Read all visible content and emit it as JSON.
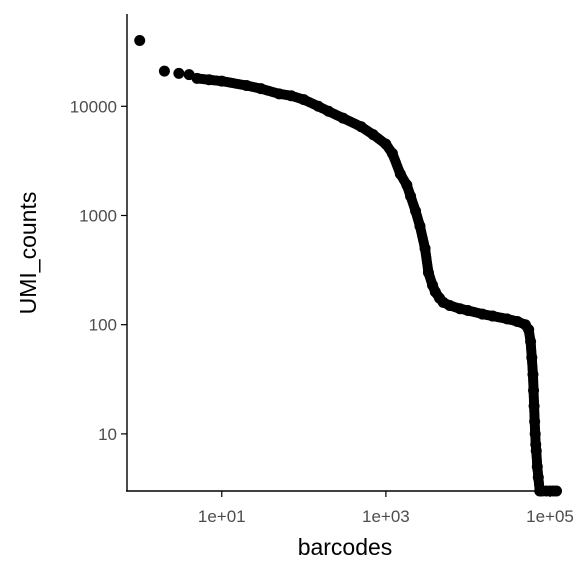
{
  "chart_data": {
    "type": "scatter",
    "title": "",
    "xlabel": "barcodes",
    "ylabel": "UMI_counts",
    "x_scale": "log10",
    "y_scale": "log10",
    "xlim": [
      0.7,
      140000
    ],
    "ylim": [
      3,
      70000
    ],
    "grid": false,
    "legend": "none",
    "x_ticks": [
      {
        "value": 10,
        "label": "1e+01"
      },
      {
        "value": 1000,
        "label": "1e+03"
      },
      {
        "value": 100000,
        "label": "1e+05"
      }
    ],
    "y_ticks": [
      {
        "value": 10,
        "label": "10"
      },
      {
        "value": 100,
        "label": "100"
      },
      {
        "value": 1000,
        "label": "1000"
      },
      {
        "value": 10000,
        "label": "10000"
      }
    ],
    "point_color": "#000000",
    "series": [
      {
        "x": [
          1,
          2,
          3,
          4,
          5,
          7,
          10,
          20,
          30,
          50,
          70,
          100,
          150,
          200,
          300,
          500,
          700,
          1000,
          1200,
          1500,
          1800,
          2000,
          2300,
          2600,
          3000,
          3300,
          3700,
          4000,
          4500,
          5000,
          6000,
          8000,
          10000,
          15000,
          20000,
          30000,
          40000,
          50000,
          55000,
          58000,
          60000,
          62000,
          63000,
          64000,
          65000,
          66000,
          67000,
          68000,
          70000,
          72000,
          75000,
          80000,
          90000,
          100000,
          110000,
          120000
        ],
        "y": [
          40000,
          21000,
          20000,
          19500,
          18000,
          17500,
          17000,
          15500,
          14500,
          13000,
          12500,
          11500,
          10000,
          9000,
          7800,
          6500,
          5500,
          4500,
          3700,
          2400,
          1900,
          1500,
          1100,
          800,
          500,
          300,
          230,
          200,
          175,
          160,
          150,
          140,
          135,
          125,
          120,
          113,
          107,
          100,
          90,
          70,
          50,
          35,
          25,
          18,
          13,
          10,
          8,
          7,
          5,
          4,
          3,
          3,
          3,
          3,
          3,
          3
        ]
      }
    ]
  }
}
